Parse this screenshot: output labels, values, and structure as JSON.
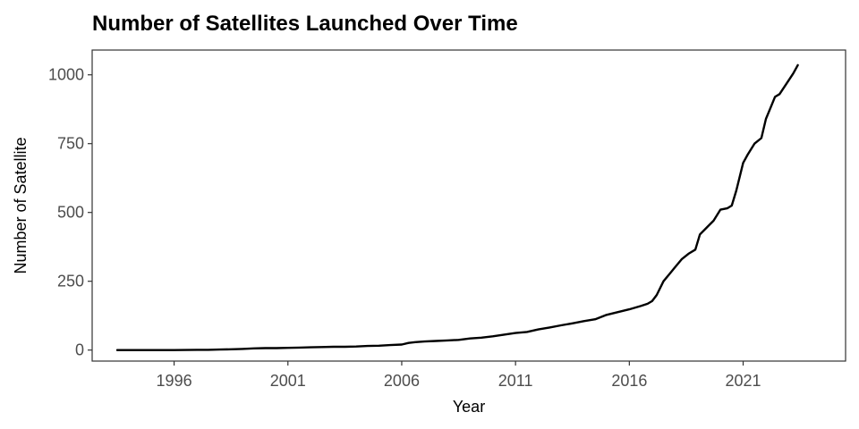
{
  "chart_data": {
    "type": "line",
    "title": "Number of Satellites Launched Over Time",
    "xlabel": "Year",
    "ylabel": "Number of Satellite",
    "xlim": [
      1992.4,
      2025.5
    ],
    "ylim": [
      -40,
      1090
    ],
    "xticks": [
      1996,
      2001,
      2006,
      2011,
      2016,
      2021
    ],
    "yticks": [
      0,
      250,
      500,
      750,
      1000
    ],
    "xtick_labels": [
      "1996",
      "2001",
      "2006",
      "2011",
      "2016",
      "2021"
    ],
    "ytick_labels": [
      "0",
      "250",
      "500",
      "750",
      "1000"
    ],
    "grid": false,
    "legend": "none",
    "line_color": "#000000",
    "series": [
      {
        "x": [
          1993.5,
          1995,
          1996,
          1997,
          1997.5,
          1998,
          1998.5,
          1999,
          1999.5,
          2000,
          2000.5,
          2001,
          2001.5,
          2002,
          2002.5,
          2003,
          2003.5,
          2004,
          2004.5,
          2005,
          2005.5,
          2006,
          2006.3,
          2006.6,
          2007,
          2007.5,
          2008,
          2008.5,
          2009,
          2009.5,
          2010,
          2010.5,
          2011,
          2011.5,
          2012,
          2012.5,
          2013,
          2013.5,
          2014,
          2014.5,
          2015,
          2015.5,
          2016,
          2016.5,
          2016.8,
          2017,
          2017.2,
          2017.5,
          2017.8,
          2018,
          2018.3,
          2018.6,
          2018.9,
          2019.1,
          2019.4,
          2019.7,
          2020,
          2020.3,
          2020.5,
          2020.7,
          2021,
          2021.2,
          2021.5,
          2021.8,
          2022,
          2022.2,
          2022.4,
          2022.6,
          2023,
          2023.2,
          2023.4
        ],
        "y": [
          0,
          0,
          0,
          1,
          1,
          2,
          3,
          4,
          6,
          7,
          7,
          8,
          9,
          10,
          11,
          12,
          12,
          13,
          15,
          16,
          18,
          20,
          26,
          29,
          31,
          33,
          35,
          37,
          42,
          45,
          50,
          56,
          62,
          66,
          75,
          82,
          90,
          97,
          105,
          112,
          128,
          138,
          148,
          160,
          168,
          178,
          200,
          250,
          280,
          300,
          330,
          350,
          365,
          420,
          445,
          470,
          510,
          515,
          525,
          580,
          680,
          710,
          750,
          770,
          840,
          880,
          920,
          930,
          980,
          1005,
          1035
        ]
      }
    ]
  }
}
